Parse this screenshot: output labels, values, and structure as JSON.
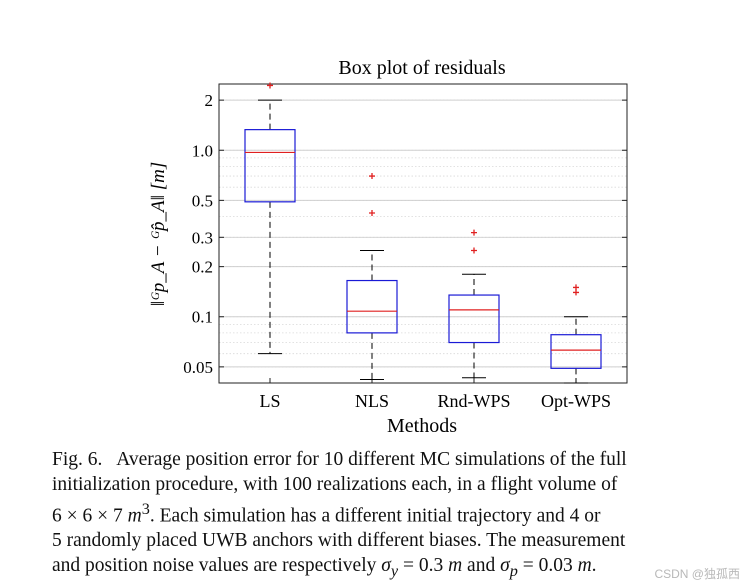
{
  "chart_data": {
    "type": "box",
    "title": "Box plot of residuals",
    "xlabel": "Methods",
    "ylabel": "‖ᴳp_A − ᴳp̂_A‖  [m]",
    "yscale": "log",
    "ylim": [
      0.04,
      2.5
    ],
    "yticks": [
      0.05,
      0.1,
      0.2,
      0.3,
      0.5,
      1.0,
      2
    ],
    "ytick_labels": [
      "0.05",
      "0.1",
      "0.2",
      "0.3",
      "0.5",
      "1.0",
      "2"
    ],
    "grid": true,
    "categories": [
      "LS",
      "NLS",
      "Rnd-WPS",
      "Opt-WPS"
    ],
    "boxes": [
      {
        "name": "LS",
        "whisker_low": 0.06,
        "q1": 0.49,
        "median": 0.97,
        "q3": 1.33,
        "whisker_high": 2.0,
        "outliers": [
          2.45
        ]
      },
      {
        "name": "NLS",
        "whisker_low": 0.042,
        "q1": 0.08,
        "median": 0.108,
        "q3": 0.165,
        "whisker_high": 0.25,
        "outliers": [
          0.42,
          0.7
        ]
      },
      {
        "name": "Rnd-WPS",
        "whisker_low": 0.043,
        "q1": 0.07,
        "median": 0.11,
        "q3": 0.135,
        "whisker_high": 0.18,
        "outliers": [
          0.25,
          0.32
        ]
      },
      {
        "name": "Opt-WPS",
        "whisker_low": 0.04,
        "q1": 0.049,
        "median": 0.063,
        "q3": 0.078,
        "whisker_high": 0.1,
        "outliers": [
          0.14,
          0.15
        ]
      }
    ]
  },
  "caption": {
    "label": "Fig. 6.",
    "line1": "Average position error for 10 different MC simulations of the full",
    "line2": "initialization procedure, with 100 realizations each, in a flight volume of",
    "line3_pre": "6 × 6 × 7 ",
    "line3_unit": "m",
    "line3_exp": "3",
    "line3_post": ". Each simulation has a different initial trajectory and 4 or",
    "line4": "5 randomly placed UWB anchors with different biases. The measurement",
    "line5_pre": "and position noise values are respectively ",
    "sigma_y": "σ",
    "sigma_y_sub": "y",
    "sigma_y_val": " = 0.3 ",
    "unit_m": "m",
    "line5_mid": " and ",
    "sigma_p": "σ",
    "sigma_p_sub": "p",
    "sigma_p_val": " = 0.03 ",
    "line5_end": "."
  },
  "watermark": "CSDN @独孤西"
}
